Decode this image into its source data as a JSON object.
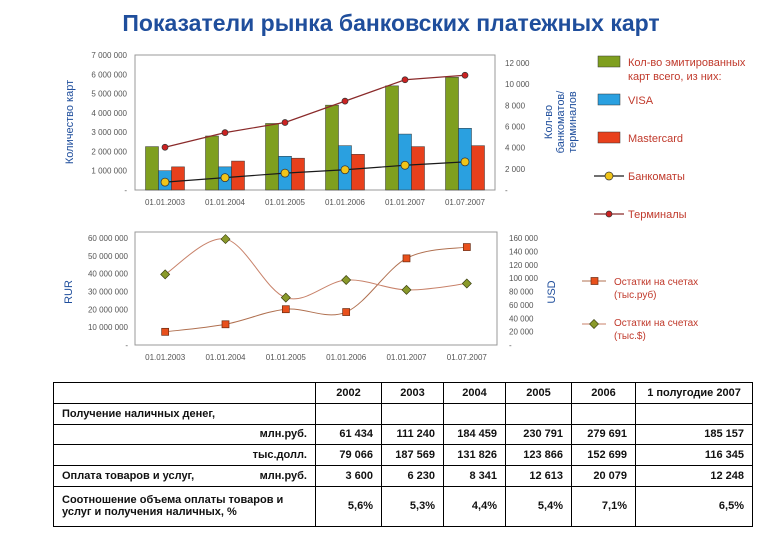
{
  "title": "Показатели рынка банковских платежных карт",
  "colors": {
    "bar_total": "#7f9f1f",
    "bar_visa": "#2aa0e0",
    "bar_mc": "#e8401c",
    "line_atm": "#1a1a1a",
    "line_term": "#8a2a2a",
    "usd_line": "#c8826a",
    "rur_line": "#b07050"
  },
  "chart_data": [
    {
      "type": "bar",
      "categories": [
        "01.01.2003",
        "01.01.2004",
        "01.01.2005",
        "01.01.2006",
        "01.01.2007",
        "01.07.2007"
      ],
      "ylabel": "Количество карт",
      "ylabel_right": "Кол-во банкоматов/ терминалов",
      "yticks": [
        "7 000 000",
        "6 000 000",
        "5 000 000",
        "4 000 000",
        "3 000 000",
        "2 000 000",
        "1 000 000",
        "-"
      ],
      "yticks_right": [
        "12 000",
        "10 000",
        "8 000",
        "6 000",
        "4 000",
        "2 000",
        "-"
      ],
      "ylim": [
        0,
        7000000
      ],
      "ylim_right": [
        0,
        12000
      ],
      "series": [
        {
          "name": "Кол-во эмитированных карт всего, из них:",
          "values": [
            2250000,
            2800000,
            3450000,
            4400000,
            5400000,
            5850000
          ]
        },
        {
          "name": "VISA",
          "values": [
            1000000,
            1200000,
            1750000,
            2300000,
            2900000,
            3200000
          ]
        },
        {
          "name": "Mastercard",
          "values": [
            1200000,
            1500000,
            1650000,
            1850000,
            2250000,
            2300000
          ]
        }
      ],
      "line_series": [
        {
          "name": "Банкоматы",
          "values": [
            700,
            1100,
            1500,
            1800,
            2200,
            2500
          ]
        },
        {
          "name": "Терминалы",
          "values": [
            3800,
            5100,
            6000,
            7900,
            9800,
            10200
          ]
        }
      ]
    },
    {
      "type": "line",
      "categories": [
        "01.01.2003",
        "01.01.2004",
        "01.01.2005",
        "01.01.2006",
        "01.01.2007",
        "01.07.2007"
      ],
      "ylabel": "RUR",
      "ylabel_right": "USD",
      "yticks": [
        "60 000 000",
        "50 000 000",
        "40 000 000",
        "30 000 000",
        "20 000 000",
        "10 000 000",
        "-"
      ],
      "yticks_right": [
        "160 000",
        "140 000",
        "120 000",
        "100 000",
        "80 000",
        "60 000",
        "40 000",
        "20 000",
        "-"
      ],
      "ylim": [
        0,
        60000000
      ],
      "ylim_right": [
        0,
        160000
      ],
      "series": [
        {
          "name": "Остатки на счетах (тыс.руб)",
          "axis": "left",
          "values": [
            7000000,
            11000000,
            19000000,
            17500000,
            46000000,
            52000000
          ]
        },
        {
          "name": "Остатки на счетах (тыс.$)",
          "axis": "right",
          "values": [
            100000,
            150000,
            67000,
            92000,
            78000,
            87000
          ]
        }
      ]
    }
  ],
  "table": {
    "headers": [
      "",
      "2002",
      "2003",
      "2004",
      "2005",
      "2006",
      "1 полугодие 2007"
    ],
    "rows": [
      {
        "label": "Получение наличных денег,",
        "values": [
          "",
          "",
          "",
          "",
          "",
          ""
        ]
      },
      {
        "label": "млн.руб.",
        "values": [
          "61 434",
          "111 240",
          "184 459",
          "230 791",
          "279 691",
          "185 157"
        ]
      },
      {
        "label": "тыс.долл.",
        "values": [
          "79 066",
          "187 569",
          "131 826",
          "123 866",
          "152 699",
          "116 345"
        ]
      },
      {
        "label": "Оплата товаров и услуг,",
        "unit": "млн.руб.",
        "values": [
          "3 600",
          "6 230",
          "8 341",
          "12 613",
          "20 079",
          "12 248"
        ]
      },
      {
        "label": "Соотношение объема оплаты товаров и услуг и получения наличных, %",
        "values": [
          "5,6%",
          "5,3%",
          "4,4%",
          "5,4%",
          "7,1%",
          "6,5%"
        ]
      }
    ]
  }
}
